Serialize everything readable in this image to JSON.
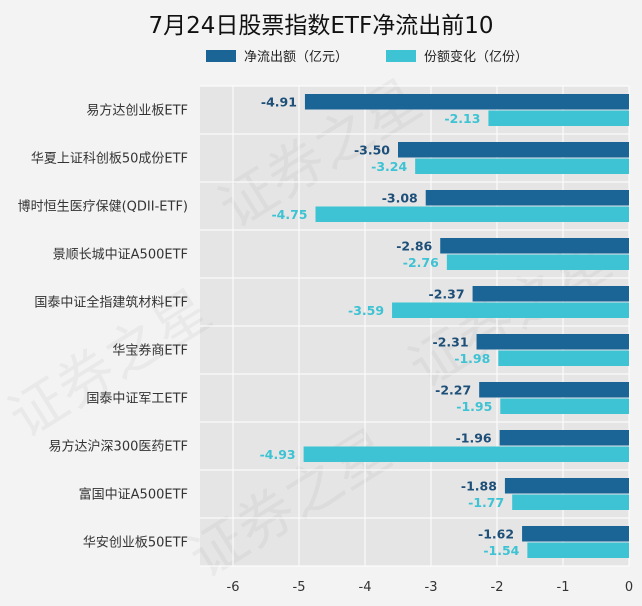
{
  "chart_data": {
    "type": "bar",
    "orientation": "horizontal",
    "title": "7月24日股票指数ETF净流出前10",
    "categories": [
      "易方达创业板ETF",
      "华夏上证科创板50成份ETF",
      "博时恒生医疗保健(QDII-ETF)",
      "景顺长城中证A500ETF",
      "国泰中证全指建筑材料ETF",
      "华宝券商ETF",
      "国泰中证军工ETF",
      "易方达沪深300医药ETF",
      "富国中证A500ETF",
      "华安创业板50ETF"
    ],
    "series": [
      {
        "name": "净流出额（亿元）",
        "color": "#1a6496",
        "values": [
          -4.91,
          -3.5,
          -3.08,
          -2.86,
          -2.37,
          -2.31,
          -2.27,
          -1.96,
          -1.88,
          -1.62
        ],
        "labels": [
          "-4.91",
          "-3.50",
          "-3.08",
          "-2.86",
          "-2.37",
          "-2.31",
          "-2.27",
          "-1.96",
          "-1.88",
          "-1.62"
        ]
      },
      {
        "name": "份额变化（亿份）",
        "color": "#3dc3d3",
        "values": [
          -2.13,
          -3.24,
          -4.75,
          -2.76,
          -3.59,
          -1.98,
          -1.95,
          -4.93,
          -1.77,
          -1.54
        ],
        "labels": [
          "-2.13",
          "-3.24",
          "-4.75",
          "-2.76",
          "-3.59",
          "-1.98",
          "-1.95",
          "-4.93",
          "-1.77",
          "-1.54"
        ]
      }
    ],
    "xlim": [
      -6.5,
      0
    ],
    "xticks": [
      -6,
      -5,
      -4,
      -3,
      -2,
      -1,
      0
    ],
    "xtick_labels": [
      "-6",
      "-5",
      "-4",
      "-3",
      "-2",
      "-1",
      "0"
    ],
    "legend_position": "top",
    "grid": true,
    "plot_background": "#e5e5e5",
    "watermark_text": "证券之星"
  }
}
